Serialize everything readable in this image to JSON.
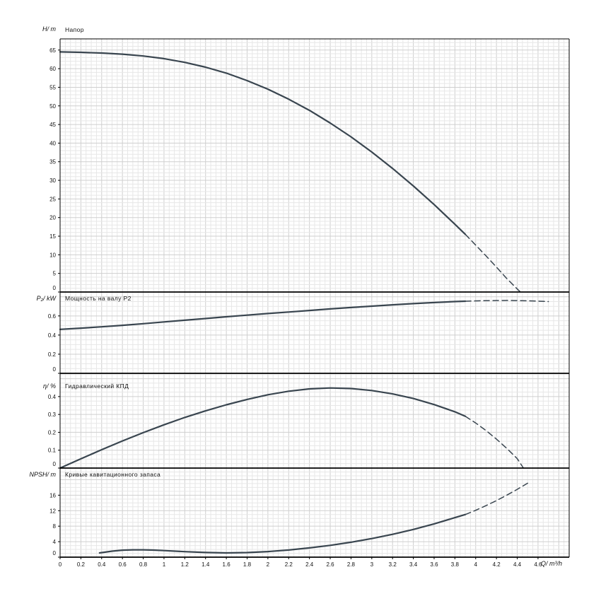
{
  "style": {
    "background": "#ffffff",
    "curve_color": "#39454f",
    "grid_minor": "#e7e7e7",
    "grid_major": "#cfcfcf",
    "axis_color": "#000000",
    "text_color": "#111111"
  },
  "x_axis": {
    "label": "Q/ m³/h",
    "xlim": [
      0,
      4.9
    ],
    "grid_minor": 0.05,
    "grid_major": 0.2,
    "ticks": [
      "0",
      "0.2",
      "0.4",
      "0.6",
      "0.8",
      "1",
      "1.2",
      "1.4",
      "1.6",
      "1.8",
      "2",
      "2.2",
      "2.4",
      "2.6",
      "2.8",
      "3",
      "3.2",
      "3.4",
      "3.6",
      "3.8",
      "4",
      "4.2",
      "4.4",
      "4.6"
    ]
  },
  "chart_data": [
    {
      "type": "line",
      "title": "Напор",
      "ylabel": "H/ m",
      "ylim": [
        0,
        68
      ],
      "yticks": [
        0,
        5,
        10,
        15,
        20,
        25,
        30,
        35,
        40,
        45,
        50,
        55,
        60,
        65
      ],
      "grid": {
        "minor": 1,
        "major": 5
      },
      "series": [
        {
          "name": "head-curve",
          "style": "solid",
          "points": [
            [
              0,
              64.5
            ],
            [
              0.2,
              64.4
            ],
            [
              0.4,
              64.2
            ],
            [
              0.6,
              63.9
            ],
            [
              0.8,
              63.4
            ],
            [
              1.0,
              62.7
            ],
            [
              1.2,
              61.7
            ],
            [
              1.4,
              60.4
            ],
            [
              1.6,
              58.8
            ],
            [
              1.8,
              56.8
            ],
            [
              2.0,
              54.5
            ],
            [
              2.2,
              51.8
            ],
            [
              2.4,
              48.8
            ],
            [
              2.6,
              45.4
            ],
            [
              2.8,
              41.7
            ],
            [
              3.0,
              37.6
            ],
            [
              3.2,
              33.2
            ],
            [
              3.4,
              28.5
            ],
            [
              3.6,
              23.5
            ],
            [
              3.8,
              18.2
            ],
            [
              3.9,
              15.5
            ]
          ]
        },
        {
          "name": "head-curve-extrapolated",
          "style": "dashed",
          "points": [
            [
              3.9,
              15.5
            ],
            [
              4.0,
              12.6
            ],
            [
              4.1,
              9.7
            ],
            [
              4.2,
              6.7
            ],
            [
              4.3,
              3.6
            ],
            [
              4.43,
              0
            ]
          ]
        }
      ]
    },
    {
      "type": "line",
      "title": "Мощность на валу P2",
      "ylabel": "P₂/ kW",
      "ylim": [
        0,
        0.85
      ],
      "yticks": [
        0,
        0.2,
        0.4,
        0.6
      ],
      "grid": {
        "minor": 0.05,
        "major": 0.2
      },
      "series": [
        {
          "name": "shaft-power-curve",
          "style": "solid",
          "points": [
            [
              0,
              0.46
            ],
            [
              0.2,
              0.472
            ],
            [
              0.4,
              0.486
            ],
            [
              0.6,
              0.502
            ],
            [
              0.8,
              0.519
            ],
            [
              1.0,
              0.537
            ],
            [
              1.2,
              0.555
            ],
            [
              1.4,
              0.573
            ],
            [
              1.6,
              0.591
            ],
            [
              1.8,
              0.608
            ],
            [
              2.0,
              0.625
            ],
            [
              2.2,
              0.641
            ],
            [
              2.4,
              0.657
            ],
            [
              2.6,
              0.673
            ],
            [
              2.8,
              0.688
            ],
            [
              3.0,
              0.702
            ],
            [
              3.2,
              0.716
            ],
            [
              3.4,
              0.729
            ],
            [
              3.6,
              0.74
            ],
            [
              3.8,
              0.75
            ],
            [
              3.9,
              0.754
            ]
          ]
        },
        {
          "name": "shaft-power-curve-extrapolated",
          "style": "dashed",
          "points": [
            [
              3.9,
              0.754
            ],
            [
              4.1,
              0.76
            ],
            [
              4.3,
              0.762
            ],
            [
              4.5,
              0.758
            ],
            [
              4.7,
              0.75
            ]
          ]
        }
      ]
    },
    {
      "type": "line",
      "title": "Гидравлический КПД",
      "ylabel": "η/ %",
      "ylim": [
        0,
        0.53
      ],
      "yticks": [
        0,
        0.1,
        0.2,
        0.3,
        0.4
      ],
      "grid": {
        "minor": 0.025,
        "major": 0.1
      },
      "series": [
        {
          "name": "efficiency-curve",
          "style": "solid",
          "points": [
            [
              0,
              0
            ],
            [
              0.2,
              0.052
            ],
            [
              0.4,
              0.103
            ],
            [
              0.6,
              0.152
            ],
            [
              0.8,
              0.198
            ],
            [
              1.0,
              0.242
            ],
            [
              1.2,
              0.283
            ],
            [
              1.4,
              0.32
            ],
            [
              1.6,
              0.354
            ],
            [
              1.8,
              0.384
            ],
            [
              2.0,
              0.41
            ],
            [
              2.2,
              0.43
            ],
            [
              2.4,
              0.443
            ],
            [
              2.6,
              0.448
            ],
            [
              2.8,
              0.445
            ],
            [
              3.0,
              0.434
            ],
            [
              3.2,
              0.415
            ],
            [
              3.4,
              0.389
            ],
            [
              3.6,
              0.355
            ],
            [
              3.8,
              0.315
            ],
            [
              3.9,
              0.29
            ]
          ]
        },
        {
          "name": "efficiency-curve-extrapolated",
          "style": "dashed",
          "points": [
            [
              3.9,
              0.29
            ],
            [
              4.0,
              0.252
            ],
            [
              4.1,
              0.21
            ],
            [
              4.2,
              0.162
            ],
            [
              4.3,
              0.11
            ],
            [
              4.4,
              0.053
            ],
            [
              4.46,
              0
            ]
          ]
        }
      ]
    },
    {
      "type": "line",
      "title": "Кривые кавитационного запаса",
      "ylabel": "NPSH/ m",
      "ylim": [
        0,
        23
      ],
      "yticks": [
        0,
        4,
        8,
        12,
        16
      ],
      "grid": {
        "minor": 1,
        "major": 4
      },
      "series": [
        {
          "name": "npsh-curve",
          "style": "solid",
          "points": [
            [
              0.38,
              1.1
            ],
            [
              0.5,
              1.55
            ],
            [
              0.6,
              1.8
            ],
            [
              0.7,
              1.9
            ],
            [
              0.8,
              1.9
            ],
            [
              0.9,
              1.82
            ],
            [
              1.0,
              1.7
            ],
            [
              1.2,
              1.42
            ],
            [
              1.4,
              1.2
            ],
            [
              1.6,
              1.1
            ],
            [
              1.8,
              1.18
            ],
            [
              2.0,
              1.45
            ],
            [
              2.2,
              1.85
            ],
            [
              2.4,
              2.4
            ],
            [
              2.6,
              3.05
            ],
            [
              2.8,
              3.85
            ],
            [
              3.0,
              4.8
            ],
            [
              3.2,
              5.9
            ],
            [
              3.4,
              7.15
            ],
            [
              3.6,
              8.6
            ],
            [
              3.8,
              10.2
            ],
            [
              3.9,
              11.0
            ]
          ]
        },
        {
          "name": "npsh-curve-extrapolated",
          "style": "dashed",
          "points": [
            [
              3.9,
              11.0
            ],
            [
              4.0,
              12.1
            ],
            [
              4.1,
              13.3
            ],
            [
              4.2,
              14.6
            ],
            [
              4.3,
              16.0
            ],
            [
              4.4,
              17.5
            ],
            [
              4.5,
              19.1
            ]
          ]
        }
      ]
    }
  ]
}
